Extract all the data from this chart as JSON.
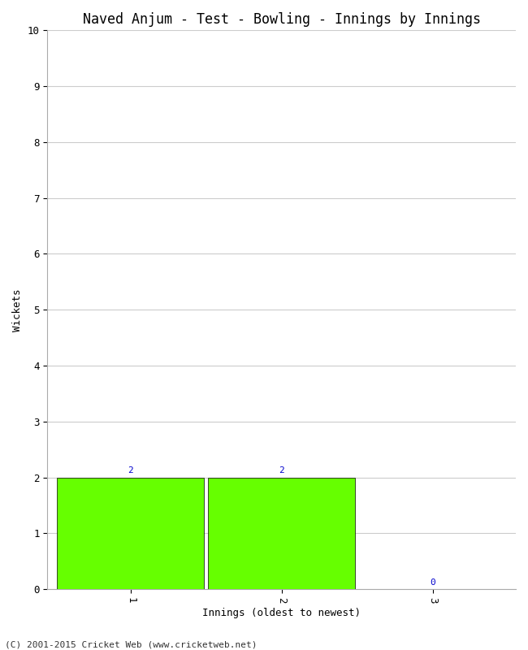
{
  "title": "Naved Anjum - Test - Bowling - Innings by Innings",
  "xlabel": "Innings (oldest to newest)",
  "ylabel": "Wickets",
  "categories": [
    1,
    2,
    3
  ],
  "values": [
    2,
    2,
    0
  ],
  "bar_color": "#66ff00",
  "bar_edge_color": "#000000",
  "ylim": [
    0,
    10
  ],
  "yticks": [
    0,
    1,
    2,
    3,
    4,
    5,
    6,
    7,
    8,
    9,
    10
  ],
  "xticks": [
    1,
    2,
    3
  ],
  "label_color": "#0000cc",
  "background_color": "#ffffff",
  "grid_color": "#cccccc",
  "footer": "(C) 2001-2015 Cricket Web (www.cricketweb.net)",
  "title_fontsize": 12,
  "axis_label_fontsize": 9,
  "tick_fontsize": 9,
  "footer_fontsize": 8,
  "bar_label_fontsize": 8,
  "bar_width": 0.97,
  "xlim_left": 0.45,
  "xlim_right": 3.55
}
